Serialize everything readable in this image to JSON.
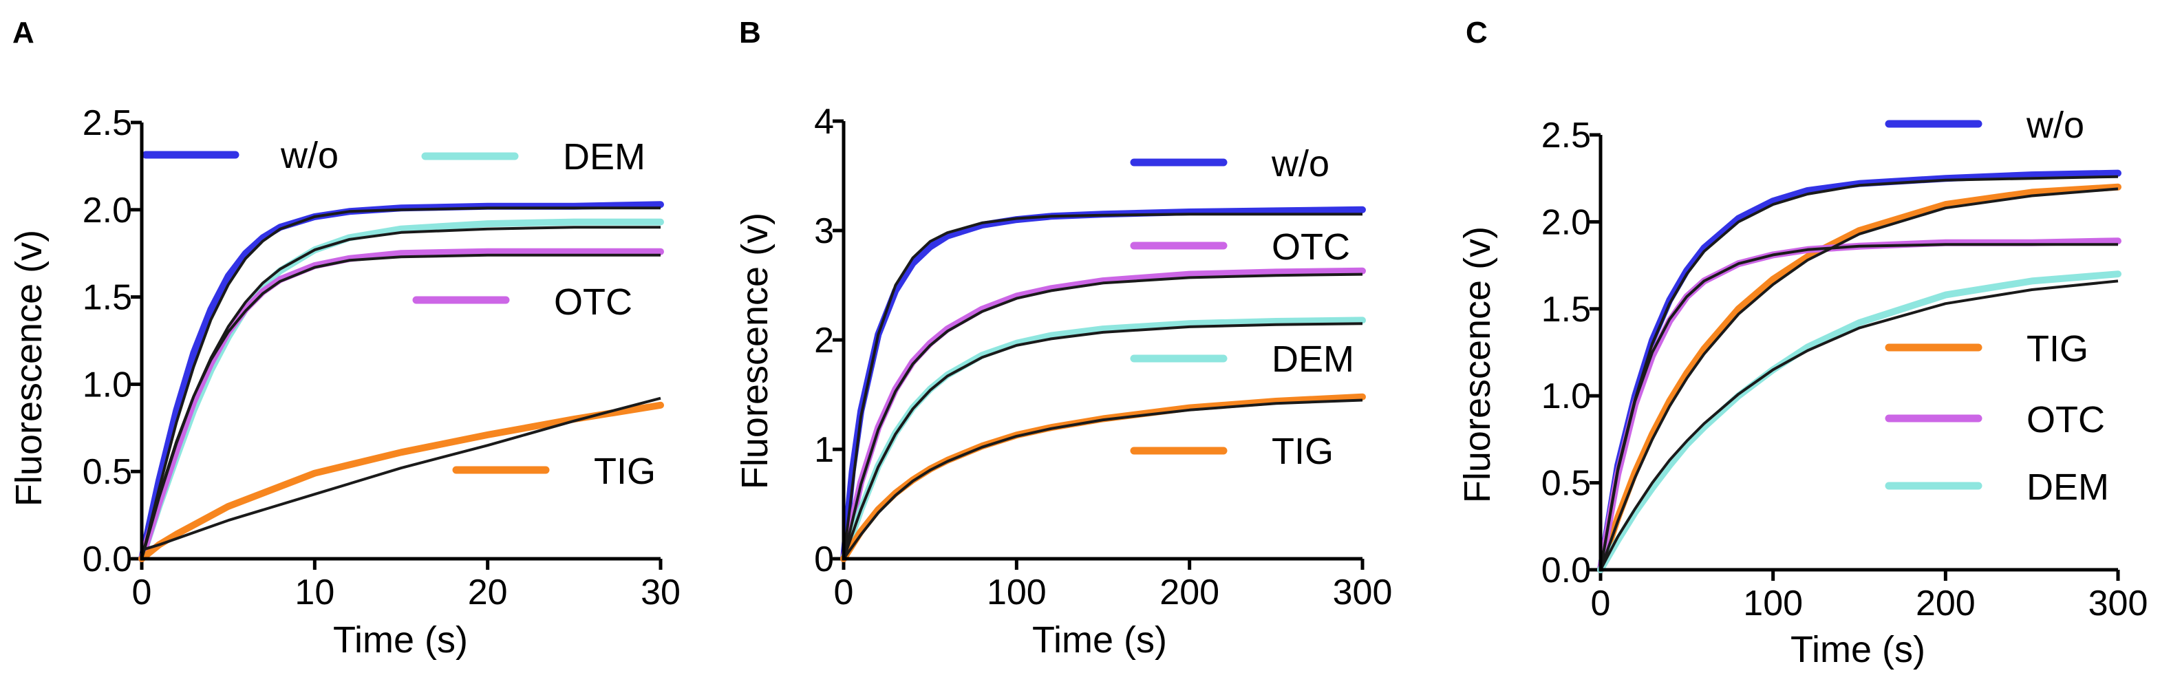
{
  "colors": {
    "w/o": "#3333e6",
    "DEM": "#8ee6df",
    "OTC": "#cc66e6",
    "TIG": "#f7861f",
    "fit": "#1a1a1a"
  },
  "chart_data": [
    {
      "panel": "A",
      "type": "line",
      "xlabel": "Time (s)",
      "ylabel": "Fluorescence (v)",
      "xlim": [
        0,
        30
      ],
      "ylim": [
        0,
        2.5
      ],
      "xticks": [
        0,
        10,
        20,
        30
      ],
      "xtick_labels": [
        "0",
        "10",
        "20",
        "30"
      ],
      "yticks": [
        0,
        0.5,
        1.0,
        1.5,
        2.0,
        2.5
      ],
      "ytick_labels": [
        "0.0",
        "0.5",
        "1.0",
        "1.5",
        "2.0",
        "2.5"
      ],
      "legend": [
        "w/o",
        "DEM",
        "OTC",
        "TIG"
      ],
      "series": [
        {
          "name": "w/o",
          "x": [
            0,
            1,
            2,
            3,
            4,
            5,
            6,
            7,
            8,
            10,
            12,
            15,
            20,
            25,
            30
          ],
          "y": [
            0,
            0.45,
            0.85,
            1.18,
            1.43,
            1.62,
            1.75,
            1.84,
            1.9,
            1.96,
            1.99,
            2.01,
            2.02,
            2.02,
            2.03
          ]
        },
        {
          "name": "DEM",
          "x": [
            0,
            1,
            2,
            3,
            4,
            5,
            6,
            7,
            8,
            10,
            12,
            15,
            20,
            25,
            30
          ],
          "y": [
            0,
            0.3,
            0.58,
            0.85,
            1.08,
            1.27,
            1.43,
            1.56,
            1.65,
            1.77,
            1.84,
            1.89,
            1.92,
            1.93,
            1.93
          ]
        },
        {
          "name": "OTC",
          "x": [
            0,
            1,
            2,
            3,
            4,
            5,
            6,
            7,
            8,
            10,
            12,
            15,
            20,
            25,
            30
          ],
          "y": [
            0,
            0.32,
            0.62,
            0.9,
            1.12,
            1.3,
            1.43,
            1.53,
            1.6,
            1.68,
            1.72,
            1.75,
            1.76,
            1.76,
            1.76
          ]
        },
        {
          "name": "TIG",
          "x": [
            0,
            1,
            2,
            5,
            10,
            15,
            20,
            25,
            30
          ],
          "y": [
            0,
            0.08,
            0.14,
            0.3,
            0.49,
            0.61,
            0.71,
            0.8,
            0.88
          ]
        }
      ],
      "fits": [
        {
          "name": "w/o fit",
          "x": [
            0,
            1,
            2,
            3,
            4,
            5,
            6,
            7,
            8,
            10,
            12,
            15,
            20,
            25,
            30
          ],
          "y": [
            0,
            0.4,
            0.78,
            1.1,
            1.37,
            1.57,
            1.72,
            1.82,
            1.89,
            1.96,
            1.99,
            2.0,
            2.01,
            2.01,
            2.01
          ]
        },
        {
          "name": "DEM fit",
          "x": [
            0,
            1,
            2,
            3,
            4,
            5,
            6,
            7,
            8,
            10,
            12,
            15,
            20,
            25,
            30
          ],
          "y": [
            0,
            0.35,
            0.66,
            0.93,
            1.15,
            1.33,
            1.47,
            1.58,
            1.66,
            1.77,
            1.83,
            1.87,
            1.89,
            1.9,
            1.9
          ]
        },
        {
          "name": "OTC fit",
          "x": [
            0,
            1,
            2,
            3,
            4,
            5,
            6,
            7,
            8,
            10,
            12,
            15,
            20,
            25,
            30
          ],
          "y": [
            0,
            0.36,
            0.67,
            0.93,
            1.14,
            1.3,
            1.42,
            1.52,
            1.59,
            1.67,
            1.71,
            1.73,
            1.74,
            1.74,
            1.74
          ]
        },
        {
          "name": "TIG fit",
          "x": [
            0,
            1,
            5,
            10,
            15,
            20,
            25,
            30
          ],
          "y": [
            0.05,
            0.08,
            0.22,
            0.37,
            0.52,
            0.65,
            0.79,
            0.92
          ]
        }
      ]
    },
    {
      "panel": "B",
      "type": "line",
      "xlabel": "Time (s)",
      "ylabel": "Fluorescence (v)",
      "xlim": [
        0,
        300
      ],
      "ylim": [
        0,
        4
      ],
      "xticks": [
        0,
        100,
        200,
        300
      ],
      "xtick_labels": [
        "0",
        "100",
        "200",
        "300"
      ],
      "yticks": [
        0,
        1,
        2,
        3,
        4
      ],
      "ytick_labels": [
        "0",
        "1",
        "2",
        "3",
        "4"
      ],
      "legend": [
        "w/o",
        "OTC",
        "DEM",
        "TIG"
      ],
      "series": [
        {
          "name": "w/o",
          "x": [
            0,
            5,
            10,
            20,
            30,
            40,
            50,
            60,
            80,
            100,
            120,
            150,
            200,
            250,
            300
          ],
          "y": [
            0,
            0.8,
            1.35,
            2.05,
            2.45,
            2.7,
            2.85,
            2.95,
            3.05,
            3.1,
            3.13,
            3.15,
            3.17,
            3.18,
            3.19
          ]
        },
        {
          "name": "OTC",
          "x": [
            0,
            10,
            20,
            30,
            40,
            50,
            60,
            80,
            100,
            120,
            150,
            200,
            250,
            300
          ],
          "y": [
            0,
            0.7,
            1.2,
            1.55,
            1.8,
            1.97,
            2.1,
            2.28,
            2.4,
            2.47,
            2.54,
            2.6,
            2.62,
            2.63
          ]
        },
        {
          "name": "DEM",
          "x": [
            0,
            10,
            20,
            30,
            40,
            50,
            60,
            80,
            100,
            120,
            150,
            200,
            250,
            300
          ],
          "y": [
            0,
            0.45,
            0.85,
            1.15,
            1.38,
            1.55,
            1.68,
            1.86,
            1.97,
            2.04,
            2.1,
            2.15,
            2.17,
            2.18
          ]
        },
        {
          "name": "TIG",
          "x": [
            0,
            10,
            20,
            30,
            40,
            50,
            60,
            80,
            100,
            120,
            150,
            200,
            250,
            300
          ],
          "y": [
            0,
            0.25,
            0.45,
            0.6,
            0.72,
            0.82,
            0.9,
            1.03,
            1.13,
            1.2,
            1.28,
            1.38,
            1.44,
            1.48
          ]
        }
      ],
      "fits": [
        {
          "name": "w/o fit",
          "x": [
            0,
            10,
            20,
            30,
            40,
            50,
            60,
            80,
            100,
            120,
            150,
            200,
            250,
            300
          ],
          "y": [
            0,
            1.3,
            2.05,
            2.5,
            2.75,
            2.9,
            2.98,
            3.07,
            3.11,
            3.13,
            3.14,
            3.15,
            3.15,
            3.15
          ]
        },
        {
          "name": "OTC fit",
          "x": [
            0,
            10,
            20,
            30,
            40,
            50,
            60,
            80,
            100,
            120,
            150,
            200,
            250,
            300
          ],
          "y": [
            0,
            0.68,
            1.18,
            1.53,
            1.78,
            1.95,
            2.08,
            2.26,
            2.38,
            2.45,
            2.52,
            2.57,
            2.59,
            2.6
          ]
        },
        {
          "name": "DEM fit",
          "x": [
            0,
            10,
            20,
            30,
            40,
            50,
            60,
            80,
            100,
            120,
            150,
            200,
            250,
            300
          ],
          "y": [
            0,
            0.45,
            0.84,
            1.14,
            1.37,
            1.54,
            1.67,
            1.84,
            1.95,
            2.01,
            2.07,
            2.12,
            2.14,
            2.15
          ]
        },
        {
          "name": "TIG fit",
          "x": [
            0,
            10,
            20,
            30,
            40,
            50,
            60,
            80,
            100,
            120,
            150,
            200,
            250,
            300
          ],
          "y": [
            0,
            0.22,
            0.42,
            0.58,
            0.71,
            0.81,
            0.89,
            1.02,
            1.12,
            1.19,
            1.27,
            1.36,
            1.42,
            1.45
          ]
        }
      ]
    },
    {
      "panel": "C",
      "type": "line",
      "xlabel": "Time (s)",
      "ylabel": "Fluorescence (v)",
      "xlim": [
        0,
        300
      ],
      "ylim": [
        0,
        2.5
      ],
      "xticks": [
        0,
        100,
        200,
        300
      ],
      "xtick_labels": [
        "0",
        "100",
        "200",
        "300"
      ],
      "yticks": [
        0,
        0.5,
        1.0,
        1.5,
        2.0,
        2.5
      ],
      "ytick_labels": [
        "0.0",
        "0.5",
        "1.0",
        "1.5",
        "2.0",
        "2.5"
      ],
      "legend": [
        "w/o",
        "TIG",
        "OTC",
        "DEM"
      ],
      "series": [
        {
          "name": "w/o",
          "x": [
            0,
            10,
            20,
            30,
            40,
            50,
            60,
            80,
            100,
            120,
            150,
            200,
            250,
            300
          ],
          "y": [
            0,
            0.6,
            1.0,
            1.32,
            1.55,
            1.72,
            1.85,
            2.02,
            2.12,
            2.18,
            2.22,
            2.25,
            2.27,
            2.28
          ]
        },
        {
          "name": "TIG",
          "x": [
            0,
            10,
            20,
            30,
            40,
            50,
            60,
            80,
            100,
            120,
            150,
            200,
            250,
            300
          ],
          "y": [
            0,
            0.3,
            0.56,
            0.78,
            0.97,
            1.13,
            1.27,
            1.5,
            1.67,
            1.8,
            1.95,
            2.1,
            2.17,
            2.2
          ]
        },
        {
          "name": "OTC",
          "x": [
            0,
            10,
            20,
            30,
            40,
            50,
            60,
            80,
            100,
            120,
            150,
            200,
            250,
            300
          ],
          "y": [
            0,
            0.55,
            0.95,
            1.23,
            1.43,
            1.57,
            1.66,
            1.76,
            1.81,
            1.84,
            1.86,
            1.88,
            1.88,
            1.89
          ]
        },
        {
          "name": "DEM",
          "x": [
            0,
            10,
            20,
            30,
            40,
            50,
            60,
            80,
            100,
            120,
            150,
            200,
            250,
            300
          ],
          "y": [
            0,
            0.17,
            0.33,
            0.47,
            0.6,
            0.72,
            0.82,
            1.0,
            1.15,
            1.28,
            1.42,
            1.58,
            1.66,
            1.7
          ]
        }
      ],
      "fits": [
        {
          "name": "w/o fit",
          "x": [
            0,
            10,
            20,
            30,
            40,
            50,
            60,
            80,
            100,
            120,
            150,
            200,
            250,
            300
          ],
          "y": [
            0,
            0.58,
            0.98,
            1.3,
            1.53,
            1.7,
            1.83,
            2.0,
            2.1,
            2.16,
            2.21,
            2.24,
            2.25,
            2.26
          ]
        },
        {
          "name": "TIG fit",
          "x": [
            0,
            10,
            20,
            30,
            40,
            50,
            60,
            80,
            100,
            120,
            150,
            200,
            250,
            300
          ],
          "y": [
            0,
            0.28,
            0.53,
            0.75,
            0.94,
            1.1,
            1.24,
            1.47,
            1.64,
            1.78,
            1.93,
            2.08,
            2.15,
            2.19
          ]
        },
        {
          "name": "OTC fit",
          "x": [
            0,
            10,
            20,
            30,
            40,
            50,
            60,
            80,
            100,
            120,
            150,
            200,
            250,
            300
          ],
          "y": [
            0,
            0.57,
            0.97,
            1.25,
            1.44,
            1.57,
            1.66,
            1.76,
            1.81,
            1.84,
            1.86,
            1.87,
            1.87,
            1.87
          ]
        },
        {
          "name": "DEM fit",
          "x": [
            0,
            10,
            20,
            30,
            40,
            50,
            60,
            80,
            100,
            120,
            150,
            200,
            250,
            300
          ],
          "y": [
            0,
            0.19,
            0.35,
            0.5,
            0.63,
            0.74,
            0.84,
            1.01,
            1.15,
            1.26,
            1.39,
            1.53,
            1.61,
            1.66
          ]
        }
      ]
    }
  ]
}
